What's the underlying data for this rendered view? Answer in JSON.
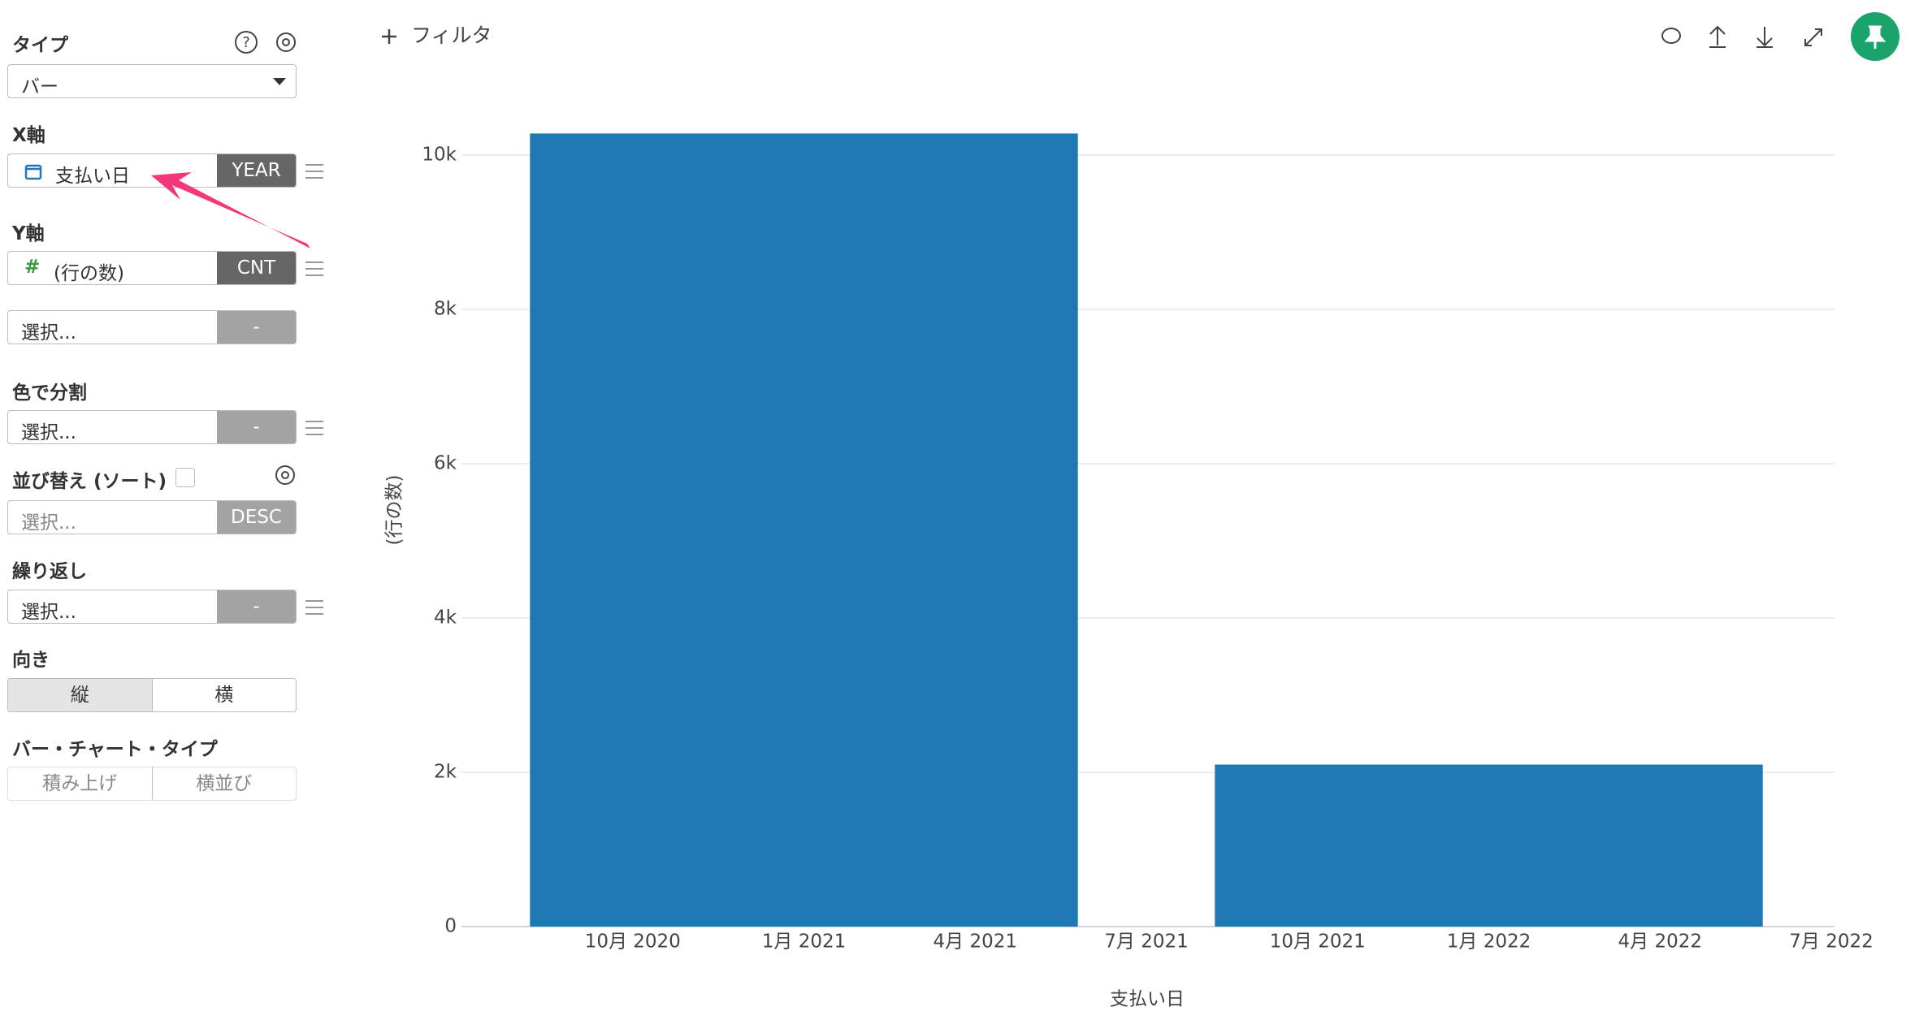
{
  "sidebar": {
    "type_label": "タイプ",
    "type_value": "バー",
    "x_label": "X軸",
    "x_field": "支払い日",
    "x_agg": "YEAR",
    "y_label": "Y軸",
    "y_field": "(行の数)",
    "y_agg": "CNT",
    "y2_placeholder": "選択...",
    "y2_agg": "-",
    "color_label": "色で分割",
    "color_placeholder": "選択...",
    "color_agg": "-",
    "sort_label": "並び替え (ソート)",
    "sort_placeholder": "選択...",
    "sort_agg": "DESC",
    "repeat_label": "繰り返し",
    "repeat_placeholder": "選択...",
    "repeat_agg": "-",
    "orientation_label": "向き",
    "orientation_options": [
      "縦",
      "横"
    ],
    "bar_type_label": "バー・チャート・タイプ",
    "bar_type_options": [
      "積み上げ",
      "横並び"
    ]
  },
  "toolbar": {
    "filter": "フィルタ"
  },
  "chart_data": {
    "type": "bar",
    "x_label": "支払い日",
    "y_label": "(行の数)",
    "x": [
      "2021-01",
      "2022-01"
    ],
    "values": [
      10280,
      2100
    ],
    "color": "#1f77b4",
    "xlim": [
      "2020-07",
      "2022-07"
    ],
    "xticks": [
      {
        "value": "2020-10",
        "label": "10月 2020"
      },
      {
        "value": "2021-01",
        "label": "1月 2021"
      },
      {
        "value": "2021-04",
        "label": "4月 2021"
      },
      {
        "value": "2021-07",
        "label": "7月 2021"
      },
      {
        "value": "2021-10",
        "label": "10月 2021"
      },
      {
        "value": "2022-01",
        "label": "1月 2022"
      },
      {
        "value": "2022-04",
        "label": "4月 2022"
      },
      {
        "value": "2022-07",
        "label": "7月 2022"
      }
    ],
    "ylim": [
      0,
      10500
    ],
    "yticks": [
      0,
      {
        "value": 2000,
        "label": "2k"
      },
      {
        "value": 4000,
        "label": "4k"
      },
      {
        "value": 6000,
        "label": "6k"
      },
      {
        "value": 8000,
        "label": "8k"
      },
      {
        "value": 10000,
        "label": "10k"
      }
    ],
    "grid": true
  }
}
